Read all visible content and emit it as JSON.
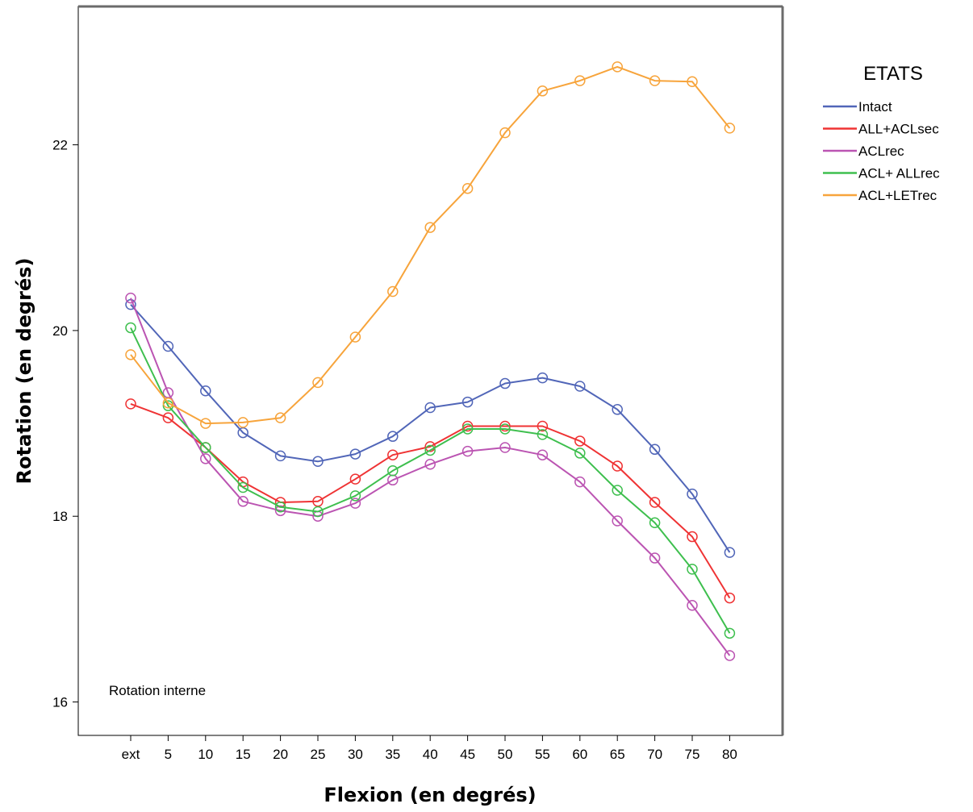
{
  "chart_data": {
    "type": "line",
    "xlabel": "Flexion (en degrés)",
    "ylabel": "Rotation (en degrés)",
    "annotation": "Rotation interne",
    "categories": [
      "ext",
      "5",
      "10",
      "15",
      "20",
      "25",
      "30",
      "35",
      "40",
      "45",
      "50",
      "55",
      "60",
      "65",
      "70",
      "75",
      "80"
    ],
    "ylim": [
      15.64,
      23.49
    ],
    "yticks": [
      16,
      18,
      20,
      22
    ],
    "yticks_labels": [
      "16",
      "18",
      "20",
      "22"
    ],
    "grid": false,
    "legend": {
      "title": "ETATS",
      "position": "right"
    },
    "markers": "open-circle",
    "series": [
      {
        "name": "Intact",
        "color": "#5166b8",
        "values": [
          20.28,
          19.83,
          19.35,
          18.9,
          18.65,
          18.59,
          18.67,
          18.86,
          19.17,
          19.23,
          19.43,
          19.49,
          19.4,
          19.15,
          18.72,
          18.24,
          17.61
        ]
      },
      {
        "name": "ALL+ACLsec",
        "color": "#ef3334",
        "values": [
          19.21,
          19.06,
          18.74,
          18.37,
          18.15,
          18.16,
          18.4,
          18.66,
          18.75,
          18.97,
          18.97,
          18.97,
          18.81,
          18.54,
          18.15,
          17.78,
          17.12
        ]
      },
      {
        "name": "ACLrec",
        "color": "#bb54b2",
        "values": [
          20.35,
          19.33,
          18.62,
          18.16,
          18.06,
          18.0,
          18.14,
          18.39,
          18.56,
          18.7,
          18.74,
          18.66,
          18.37,
          17.95,
          17.55,
          17.04,
          16.5
        ]
      },
      {
        "name": "ACL+ ALLrec",
        "color": "#3ebf4e",
        "values": [
          20.03,
          19.19,
          18.74,
          18.31,
          18.1,
          18.05,
          18.22,
          18.49,
          18.71,
          18.94,
          18.94,
          18.88,
          18.68,
          18.28,
          17.93,
          17.43,
          16.74
        ]
      },
      {
        "name": "ACL+LETrec",
        "color": "#f7a43b",
        "values": [
          19.74,
          19.22,
          19.0,
          19.01,
          19.06,
          19.44,
          19.93,
          20.42,
          21.11,
          21.53,
          22.13,
          22.58,
          22.69,
          22.84,
          22.69,
          22.68,
          22.18
        ]
      }
    ]
  }
}
